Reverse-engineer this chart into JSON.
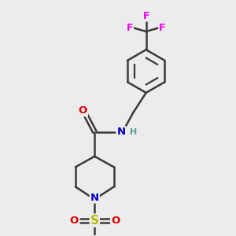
{
  "bg_color": "#ececec",
  "bond_color": "#3a3a3a",
  "bond_width": 1.8,
  "atom_colors": {
    "O": "#dd0000",
    "N": "#0000cc",
    "S": "#bbbb00",
    "F": "#ee00ee",
    "C": "#3a3a3a",
    "H": "#559999"
  },
  "font_size": 9.5
}
